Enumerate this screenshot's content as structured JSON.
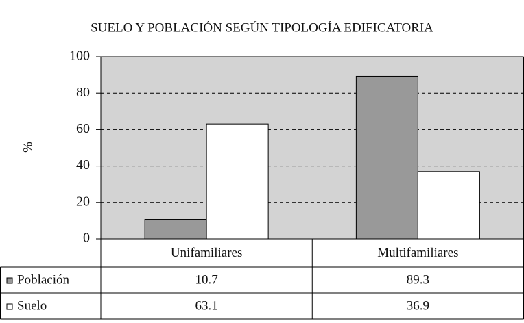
{
  "chart_data": {
    "type": "bar",
    "title": "SUELO Y POBLACIÓN SEGÚN TIPOLOGÍA EDIFICATORIA",
    "y_label": "%",
    "categories": [
      "Unifamiliares",
      "Multifamiliares"
    ],
    "series": [
      {
        "name": "Población",
        "color": "#999999",
        "values": [
          10.7,
          89.3
        ]
      },
      {
        "name": "Suelo",
        "color": "#ffffff",
        "values": [
          63.1,
          36.9
        ]
      }
    ],
    "ylim": [
      0,
      100
    ],
    "yticks": [
      0,
      20,
      40,
      60,
      80,
      100
    ],
    "grid": true
  }
}
